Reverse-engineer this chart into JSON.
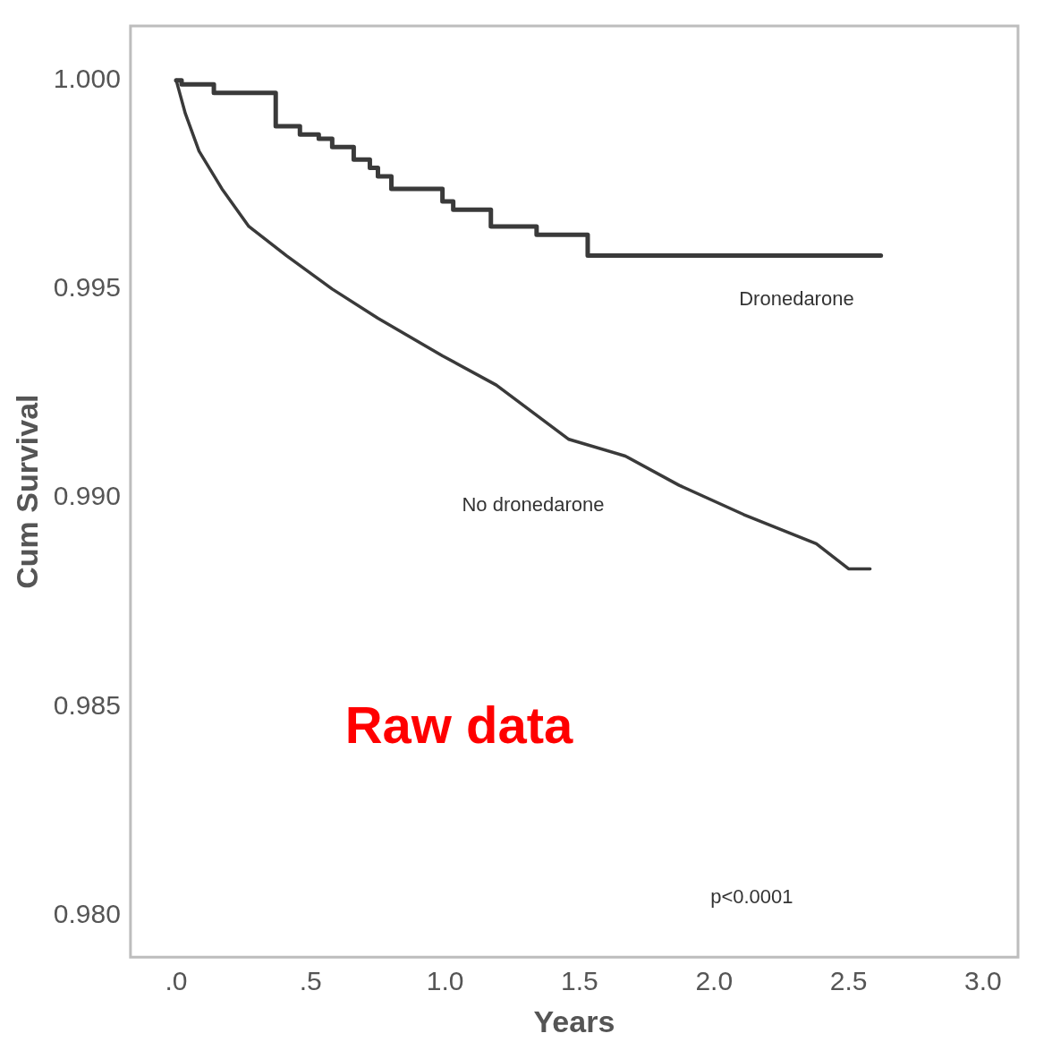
{
  "chart_data": {
    "type": "line",
    "xlabel": "Years",
    "ylabel": "Cum Survival",
    "xlim": [
      -0.17,
      3.13
    ],
    "ylim": [
      0.979,
      1.0013
    ],
    "xticks": [
      {
        "value": 0,
        "label": ".0"
      },
      {
        "value": 0.5,
        "label": ".5"
      },
      {
        "value": 1,
        "label": "1.0"
      },
      {
        "value": 1.5,
        "label": "1.5"
      },
      {
        "value": 2,
        "label": "2.0"
      },
      {
        "value": 2.5,
        "label": "2.5"
      },
      {
        "value": 3,
        "label": "3.0"
      }
    ],
    "yticks": [
      {
        "value": 0.98,
        "label": "0.980"
      },
      {
        "value": 0.985,
        "label": "0.985"
      },
      {
        "value": 0.99,
        "label": "0.990"
      },
      {
        "value": 0.995,
        "label": "0.995"
      },
      {
        "value": 1,
        "label": "1.000"
      }
    ],
    "grid": false,
    "legend": false,
    "marker": "none",
    "line_style": "solid",
    "annotations": [
      "p<0.0001",
      "Raw data"
    ],
    "series": [
      {
        "name": "Dronedarone",
        "type": "step",
        "color": "#3a3a3a",
        "x": [
          0,
          0.02,
          0.14,
          0.37,
          0.46,
          0.53,
          0.58,
          0.66,
          0.72,
          0.75,
          0.8,
          0.99,
          1.03,
          1.17,
          1.34,
          1.53,
          2.62
        ],
        "values": [
          1.0,
          0.9999,
          0.9997,
          0.9989,
          0.9987,
          0.9986,
          0.9984,
          0.9981,
          0.9979,
          0.9977,
          0.9974,
          0.9971,
          0.9969,
          0.9965,
          0.9963,
          0.9958,
          0.9958
        ]
      },
      {
        "name": "No dronedarone",
        "type": "line",
        "color": "#3a3a3a",
        "x": [
          0,
          0.034,
          0.085,
          0.17,
          0.27,
          0.41,
          0.58,
          0.75,
          0.99,
          1.19,
          1.46,
          1.67,
          1.87,
          2.11,
          2.38,
          2.5,
          2.58
        ],
        "values": [
          1.0,
          0.9992,
          0.9983,
          0.9974,
          0.9965,
          0.9958,
          0.995,
          0.9943,
          0.9934,
          0.9927,
          0.9914,
          0.991,
          0.9903,
          0.9896,
          0.9889,
          0.9883,
          0.9883
        ]
      }
    ]
  }
}
